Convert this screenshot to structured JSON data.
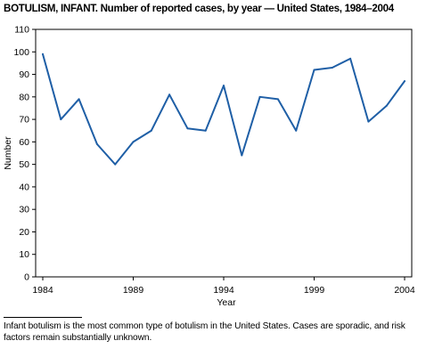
{
  "title": "BOTULISM, INFANT.",
  "subtitle": "Number of reported cases, by year — United States, 1984–2004",
  "footnote": "Infant botulism is the most common type of botulism in the United States. Cases are sporadic, and risk factors remain substantially unknown.",
  "colors": {
    "line": "#1f5fa6",
    "axis": "#000000",
    "frame": "#000000"
  },
  "chart_data": {
    "type": "line",
    "xlabel": "Year",
    "ylabel": "Number",
    "xlim": [
      1984,
      2004
    ],
    "ylim": [
      0,
      110
    ],
    "xticks": [
      1984,
      1989,
      1994,
      1999,
      2004
    ],
    "yticks": [
      0,
      10,
      20,
      30,
      40,
      50,
      60,
      70,
      80,
      90,
      100,
      110
    ],
    "grid": false,
    "legend": "none",
    "series": [
      {
        "x": [
          1984,
          1985,
          1986,
          1987,
          1988,
          1989,
          1990,
          1991,
          1992,
          1993,
          1994,
          1995,
          1996,
          1997,
          1998,
          1999,
          2000,
          2001,
          2002,
          2003,
          2004
        ],
        "y": [
          99,
          70,
          79,
          59,
          50,
          60,
          65,
          81,
          66,
          65,
          85,
          54,
          80,
          79,
          65,
          92,
          93,
          97,
          69,
          76,
          87
        ]
      }
    ]
  }
}
